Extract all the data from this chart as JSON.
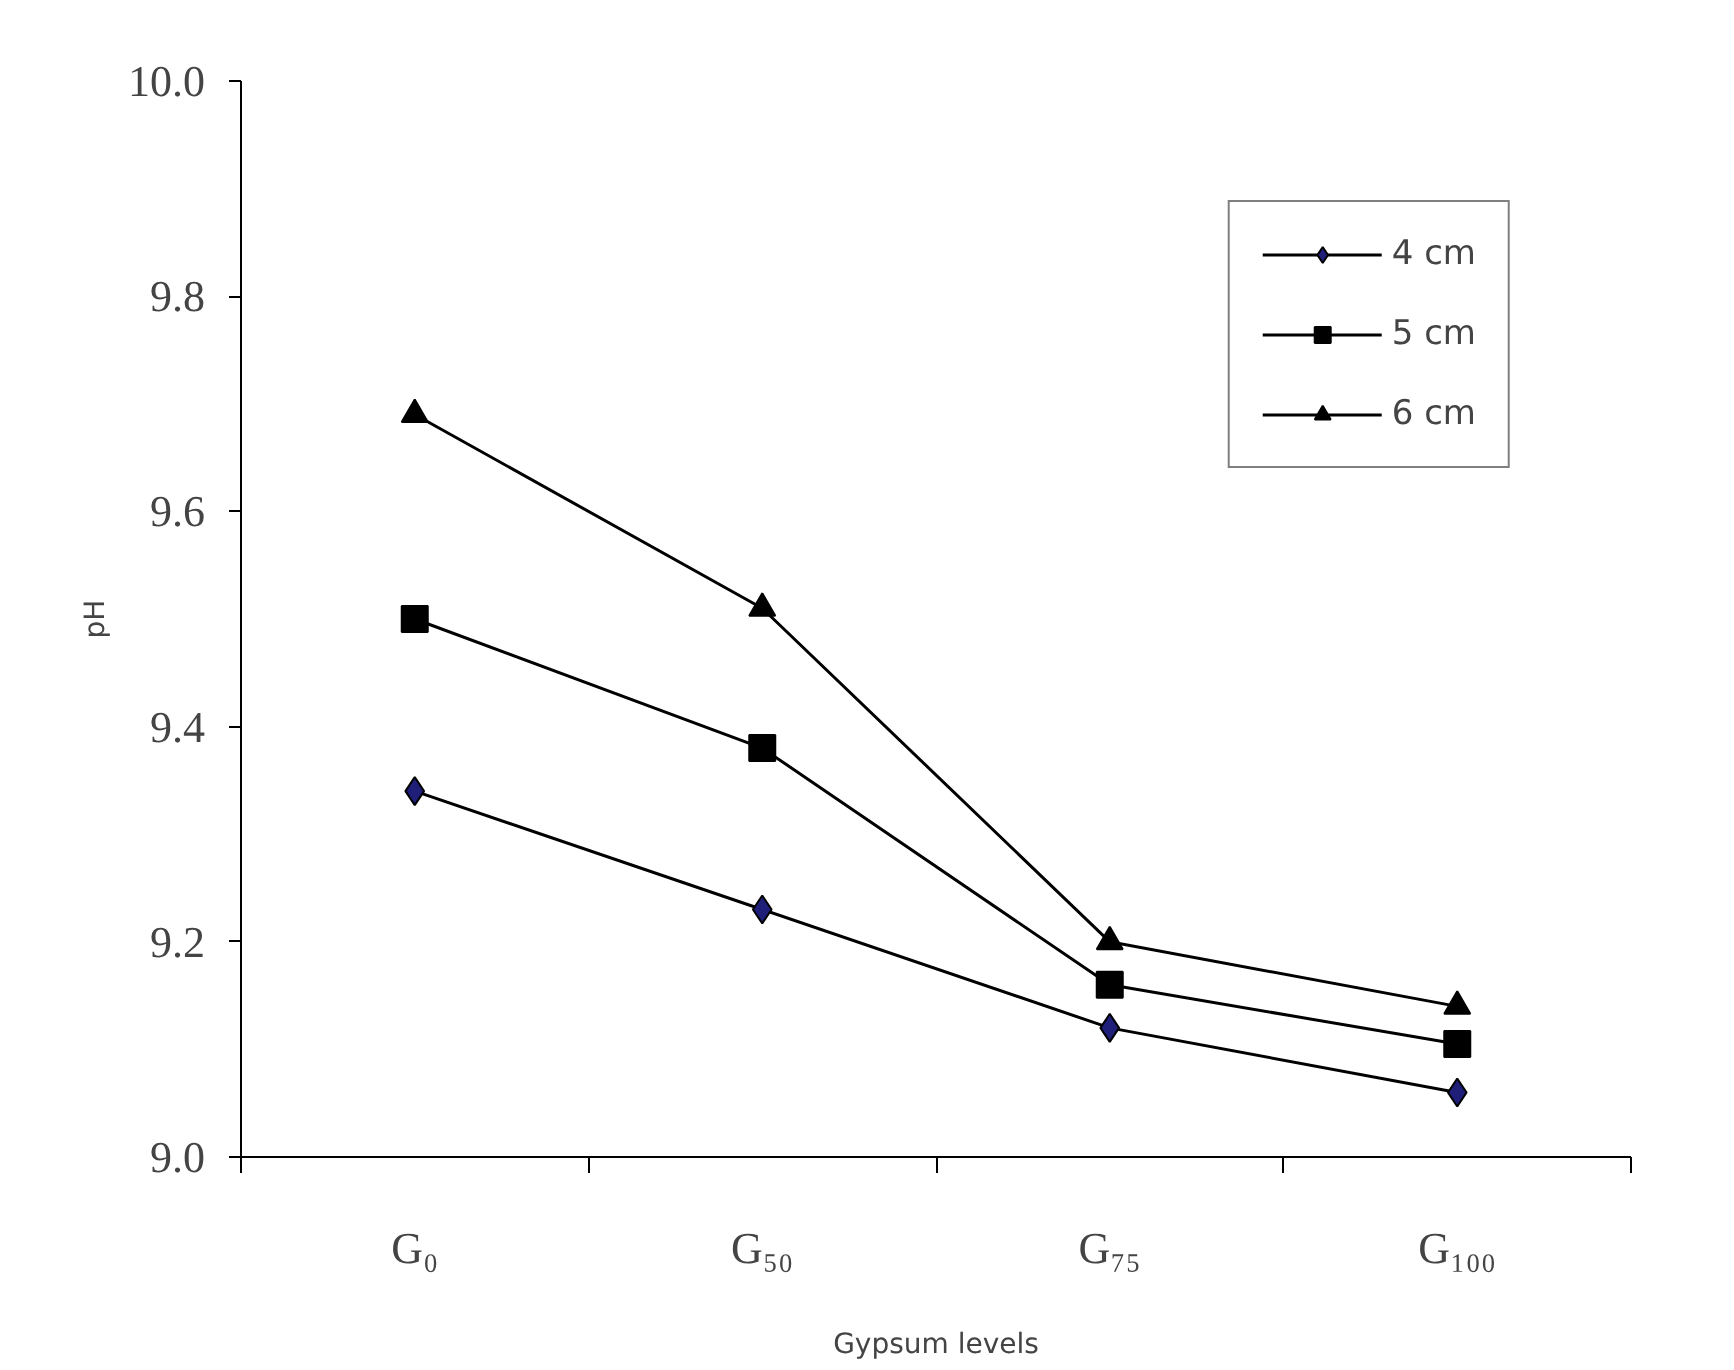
{
  "chart_data": {
    "type": "line",
    "xlabel": "Gypsum levels",
    "ylabel": "pH",
    "categories": [
      "G₀",
      "G₅₀",
      "G₇₅",
      "G₁₀₀"
    ],
    "series": [
      {
        "name": "4 cm",
        "color": "#000000",
        "colors": [
          "#1f1f7a",
          "#1f1f7a",
          "#1f1f7a",
          "#1f1f7a"
        ],
        "marker": "diamond",
        "values": [
          9.34,
          9.23,
          9.12,
          9.06
        ]
      },
      {
        "name": "5 cm",
        "color": "#000000",
        "marker": "square",
        "values": [
          9.5,
          9.38,
          9.16,
          9.105
        ]
      },
      {
        "name": "6 cm",
        "color": "#000000",
        "marker": "triangle",
        "values": [
          9.69,
          9.51,
          9.2,
          9.14
        ]
      }
    ],
    "ylim": [
      9.0,
      10.0
    ],
    "yticks": [
      {
        "value": 9.0,
        "label": "9.0"
      },
      {
        "value": 9.2,
        "label": "9.2"
      },
      {
        "value": 9.4,
        "label": "9.4"
      },
      {
        "value": 9.6,
        "label": "9.6"
      },
      {
        "value": 9.8,
        "label": "9.8"
      },
      {
        "value": 10.0,
        "label": "10.0"
      }
    ],
    "grid": false,
    "legend": "top right",
    "line_style": "solid"
  }
}
